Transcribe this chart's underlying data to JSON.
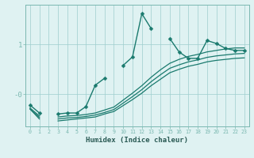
{
  "xlabel": "Humidex (Indice chaleur)",
  "x_values": [
    0,
    1,
    2,
    3,
    4,
    5,
    6,
    7,
    8,
    9,
    10,
    11,
    12,
    13,
    14,
    15,
    16,
    17,
    18,
    19,
    20,
    21,
    22,
    23
  ],
  "line_jagged": [
    -0.22,
    -0.38,
    null,
    -0.4,
    -0.38,
    -0.38,
    -0.25,
    0.18,
    0.32,
    null,
    0.58,
    0.75,
    1.62,
    1.32,
    null,
    1.12,
    0.85,
    0.72,
    0.72,
    1.08,
    1.02,
    0.92,
    0.88,
    0.88
  ],
  "line_s1": [
    -0.28,
    -0.44,
    null,
    -0.46,
    -0.44,
    -0.43,
    -0.41,
    -0.38,
    -0.32,
    -0.26,
    -0.12,
    0.02,
    0.17,
    0.34,
    0.49,
    0.62,
    0.7,
    0.76,
    0.8,
    0.85,
    0.88,
    0.91,
    0.93,
    0.93
  ],
  "line_s2": [
    -0.3,
    -0.47,
    null,
    -0.5,
    -0.48,
    -0.47,
    -0.45,
    -0.42,
    -0.37,
    -0.31,
    -0.18,
    -0.05,
    0.09,
    0.25,
    0.39,
    0.52,
    0.59,
    0.65,
    0.69,
    0.74,
    0.77,
    0.79,
    0.81,
    0.82
  ],
  "line_s3": [
    -0.3,
    -0.5,
    null,
    -0.54,
    -0.52,
    -0.5,
    -0.48,
    -0.46,
    -0.4,
    -0.35,
    -0.23,
    -0.11,
    0.02,
    0.17,
    0.3,
    0.43,
    0.5,
    0.56,
    0.6,
    0.65,
    0.68,
    0.7,
    0.72,
    0.73
  ],
  "bg_color": "#dff2f2",
  "line_color": "#1a7a6e",
  "grid_color": "#9ecece",
  "ylim": [
    -0.65,
    1.8
  ],
  "xlim": [
    -0.5,
    23.5
  ],
  "ytick_vals": [
    0.0,
    1.0
  ],
  "ytick_labels": [
    "-0",
    "1"
  ],
  "xtick_labels": [
    "0",
    "1",
    "2",
    "3",
    "4",
    "5",
    "6",
    "7",
    "8",
    "9",
    "10",
    "11",
    "12",
    "13",
    "14",
    "15",
    "16",
    "17",
    "18",
    "19",
    "20",
    "21",
    "22",
    "23"
  ]
}
